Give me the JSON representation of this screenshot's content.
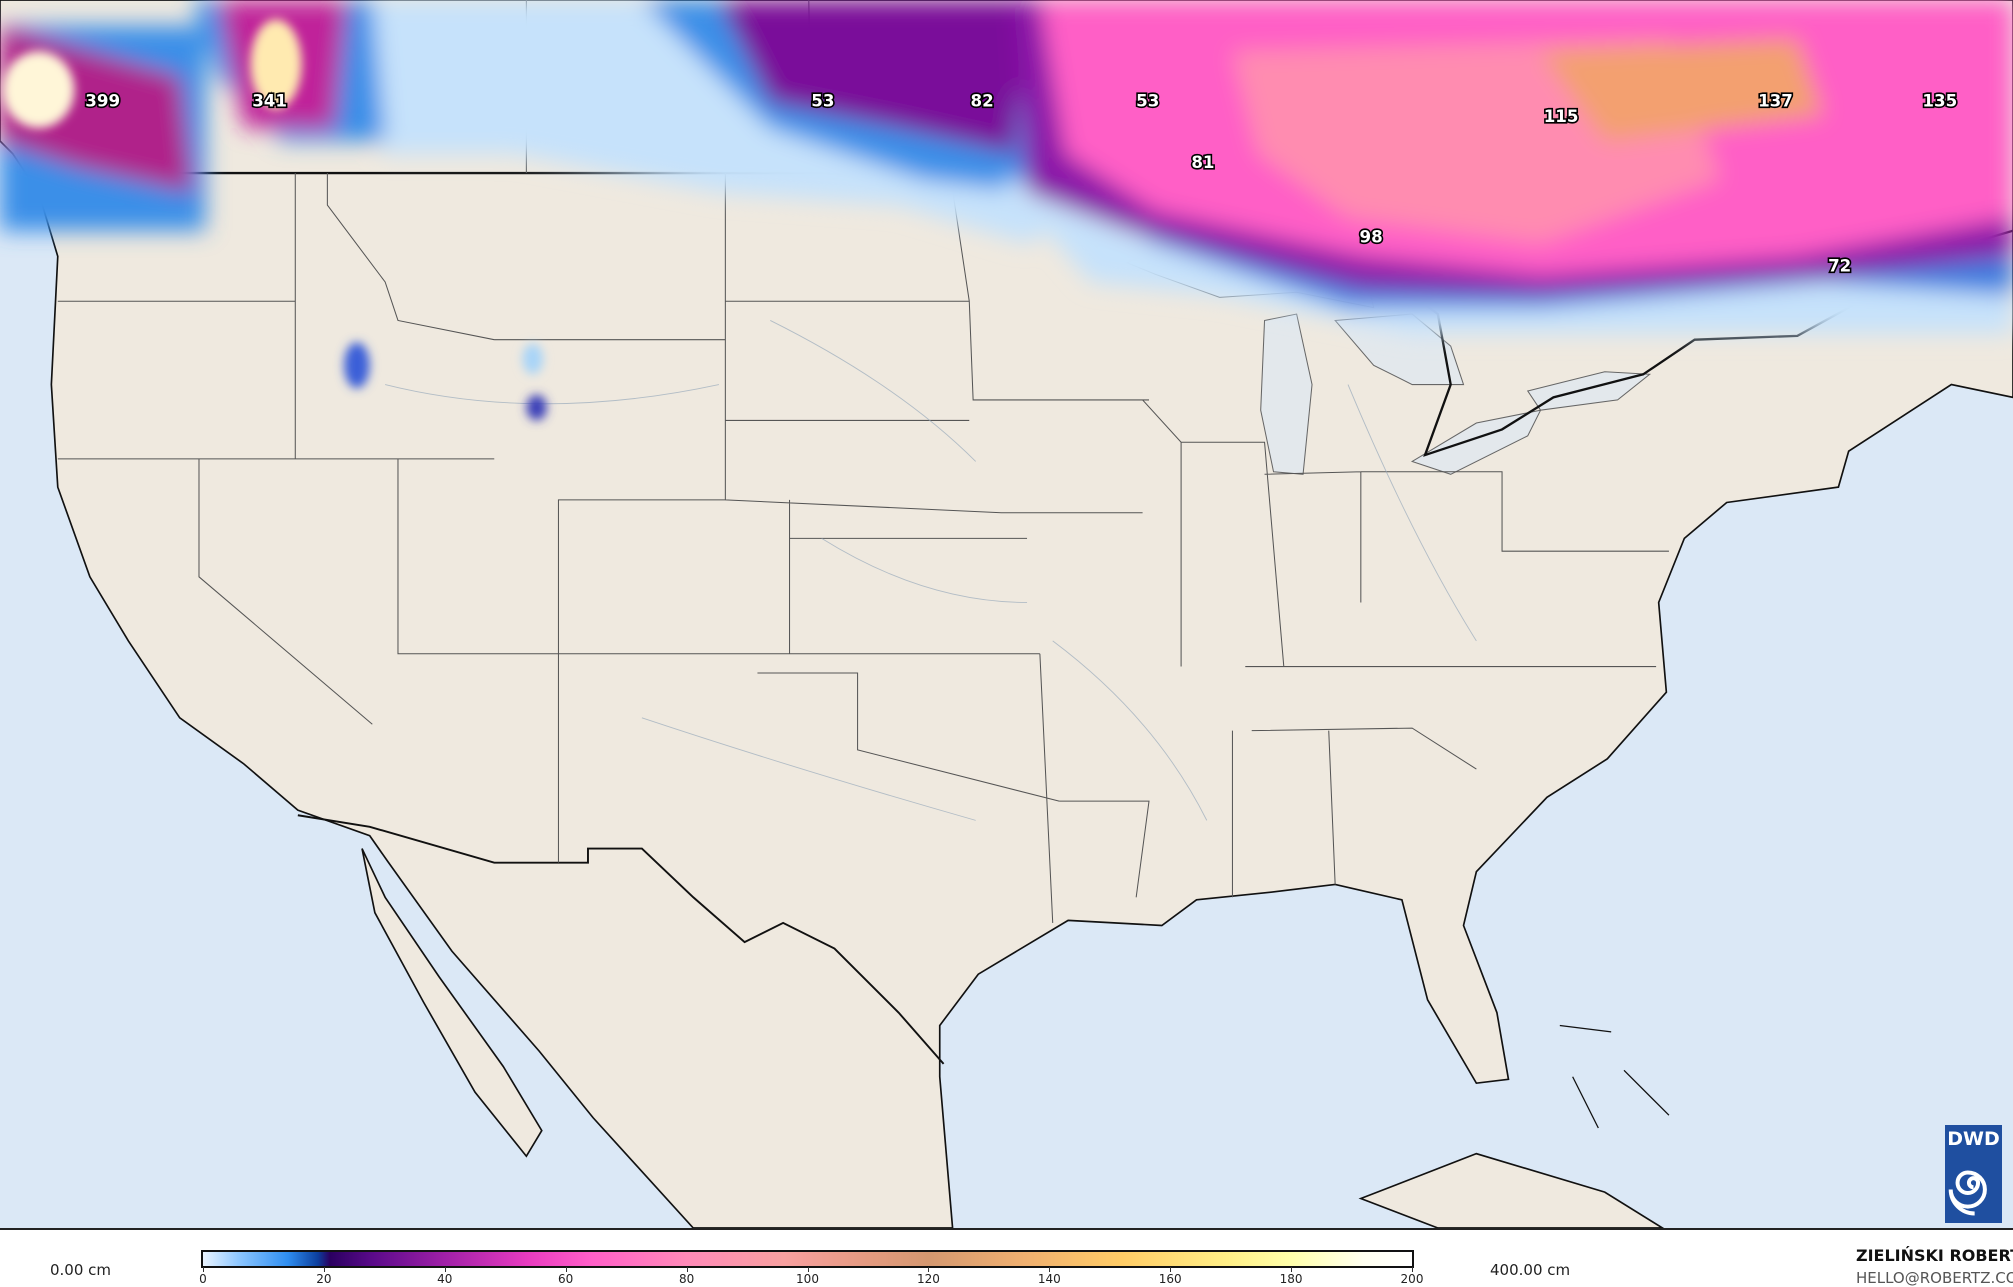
{
  "map": {
    "colors": {
      "ocean": "#dbe8f6",
      "land": "#efe9df",
      "lakes": "#e3e8ec",
      "borders": "#111111",
      "state_lines": "#555555"
    },
    "snow_labels": [
      "399",
      "341",
      "53",
      "82",
      "53",
      "81",
      "115",
      "137",
      "135",
      "98",
      "72"
    ]
  },
  "legend": {
    "min_label": "0.00 cm",
    "max_label": "400.00 cm",
    "ticks": [
      "0",
      "20",
      "40",
      "60",
      "80",
      "100",
      "120",
      "140",
      "160",
      "180",
      "200"
    ]
  },
  "credit": {
    "name": "ZIELIŃSKI ROBERT",
    "email": "HELLO@ROBERTZ.CO"
  },
  "logo": {
    "text": "DWD",
    "color": "#1f4fa0"
  }
}
